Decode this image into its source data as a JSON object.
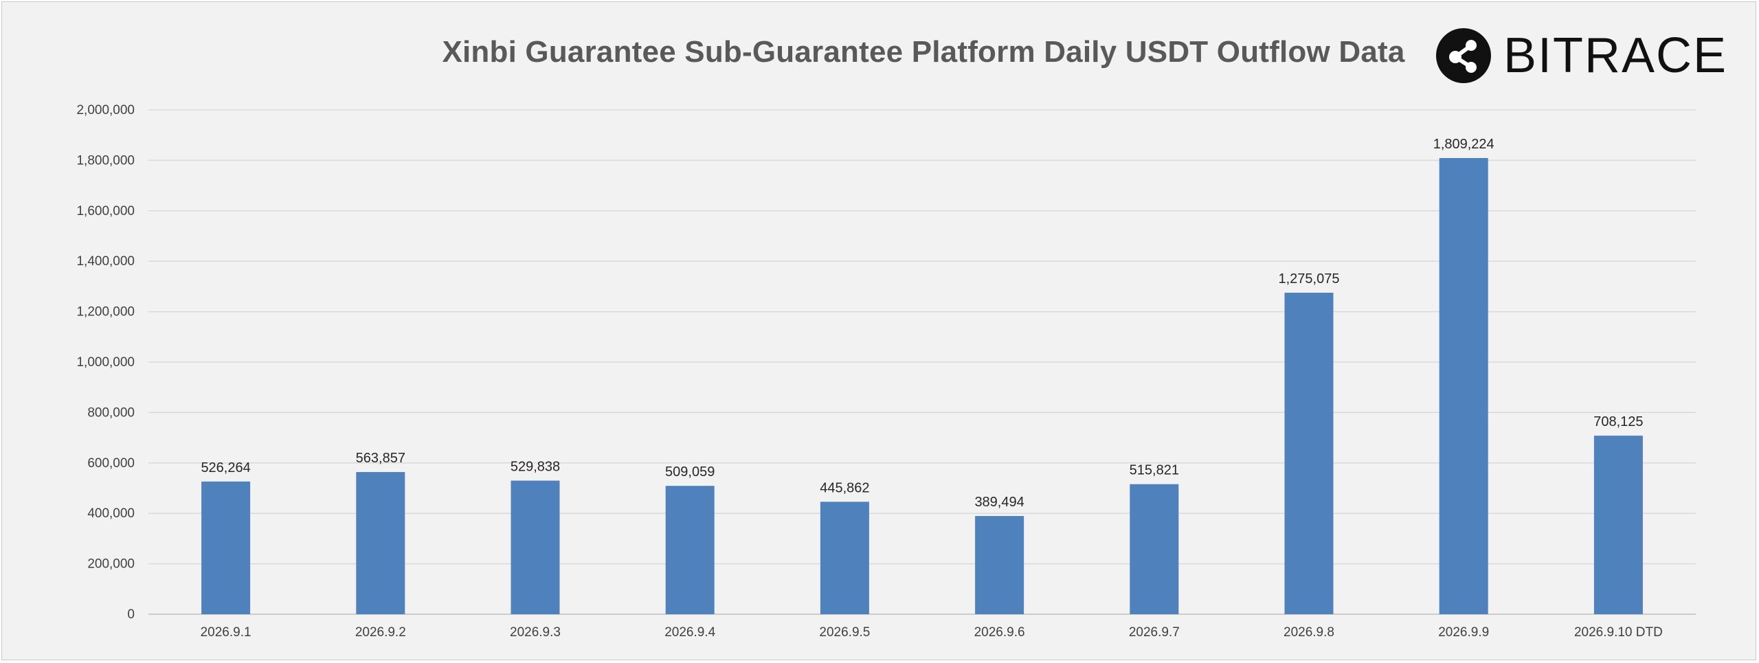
{
  "brand": {
    "wordmark": "BITRACE",
    "logo_icon": "share-nodes-icon",
    "logo_color": "#111111"
  },
  "colors": {
    "background": "#f2f2f2",
    "bar": "#4f81bd",
    "grid": "#d9d9d9",
    "title": "#595959"
  },
  "chart_data": {
    "type": "bar",
    "title": "Xinbi Guarantee Sub-Guarantee Platform Daily USDT Outflow Data",
    "xlabel": "",
    "ylabel": "",
    "categories": [
      "2026.9.1",
      "2026.9.2",
      "2026.9.3",
      "2026.9.4",
      "2026.9.5",
      "2026.9.6",
      "2026.9.7",
      "2026.9.8",
      "2026.9.9",
      "2026.9.10 DTD"
    ],
    "values": [
      526264,
      563857,
      529838,
      509059,
      445862,
      389494,
      515821,
      1275075,
      1809224,
      708125
    ],
    "value_labels": [
      "526,264",
      "563,857",
      "529,838",
      "509,059",
      "445,862",
      "389,494",
      "515,821",
      "1,275,075",
      "1,809,224",
      "708,125"
    ],
    "ylim": [
      0,
      2000000
    ],
    "yticks": [
      0,
      200000,
      400000,
      600000,
      800000,
      1000000,
      1200000,
      1400000,
      1600000,
      1800000,
      2000000
    ],
    "ytick_labels": [
      "0",
      "200,000",
      "400,000",
      "600,000",
      "800,000",
      "1,000,000",
      "1,200,000",
      "1,400,000",
      "1,600,000",
      "1,800,000",
      "2,000,000"
    ],
    "grid": true,
    "legend": "none"
  }
}
